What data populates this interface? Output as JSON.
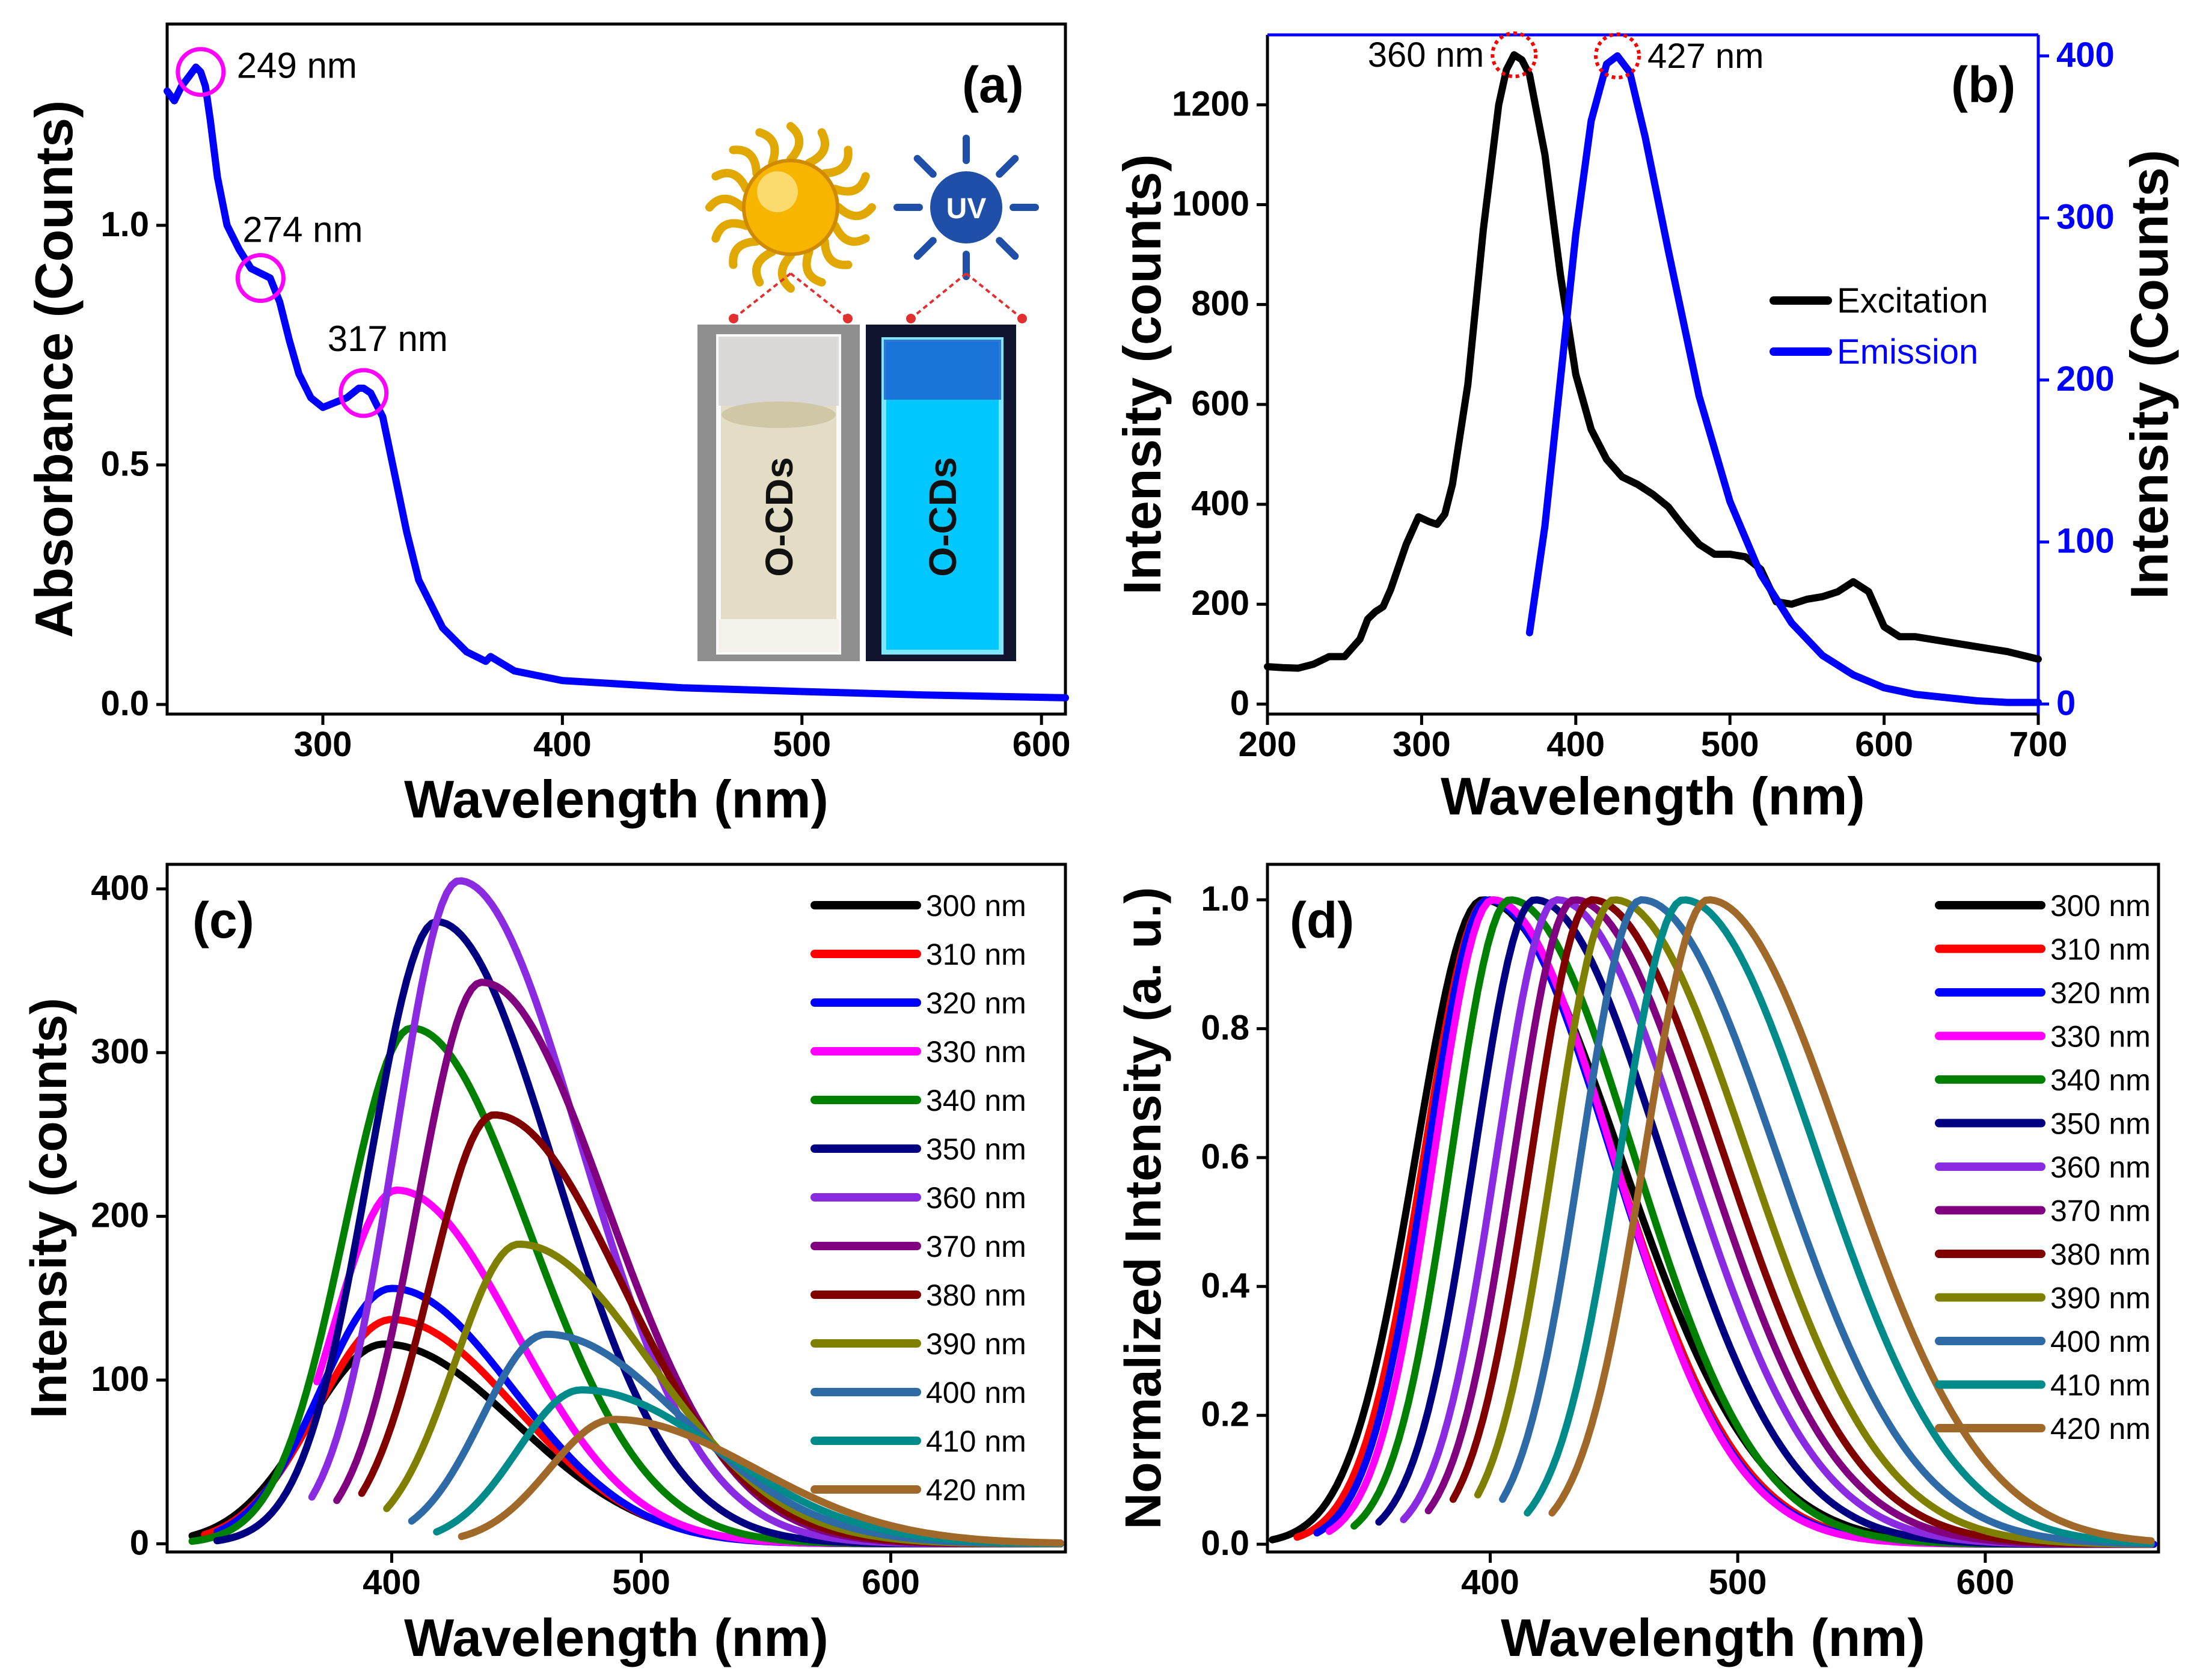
{
  "colors": {
    "black": "#000000",
    "red": "#ff0000",
    "blue": "#0000ff",
    "magenta": "#ff00ff",
    "green": "#008000",
    "navy": "#000080",
    "violet": "#8a2be2",
    "purple": "#800080",
    "maroon": "#800000",
    "olive": "#808000",
    "steelblue": "#2e6aa6",
    "teal": "#008b8b",
    "brown": "#a0692a",
    "highlight_circle": "#ff00ff",
    "dotted_circle": "#ff0000",
    "cuvette_uv": "#00c8ff",
    "cuvette_day": "#e8e2c8"
  },
  "chart_data": [
    {
      "id": "a",
      "panel_label": "(a)",
      "type": "line",
      "xlabel": "Wavelength (nm)",
      "ylabel": "Absorbance (Counts)",
      "xlim": [
        235,
        610
      ],
      "ylim": [
        -0.02,
        1.42
      ],
      "xticks": [
        300,
        400,
        500,
        600
      ],
      "yticks": [
        0.0,
        0.5,
        1.0
      ],
      "ytick_labels": [
        "0.0",
        "0.5",
        "1.0"
      ],
      "series": [
        {
          "name": "Absorbance",
          "color": "#0000ff",
          "x": [
            235,
            238,
            241,
            244,
            247,
            249,
            251,
            253,
            256,
            260,
            265,
            270,
            274,
            278,
            282,
            286,
            290,
            295,
            300,
            305,
            310,
            315,
            317,
            320,
            325,
            330,
            335,
            340,
            350,
            360,
            368,
            370,
            380,
            400,
            450,
            500,
            550,
            610
          ],
          "y": [
            1.28,
            1.26,
            1.29,
            1.31,
            1.33,
            1.32,
            1.29,
            1.22,
            1.1,
            1.0,
            0.95,
            0.91,
            0.9,
            0.89,
            0.84,
            0.76,
            0.69,
            0.64,
            0.62,
            0.63,
            0.64,
            0.66,
            0.66,
            0.65,
            0.6,
            0.48,
            0.36,
            0.26,
            0.16,
            0.11,
            0.09,
            0.1,
            0.07,
            0.05,
            0.035,
            0.027,
            0.02,
            0.014
          ]
        }
      ],
      "annotations": [
        {
          "label": "249 nm",
          "x": 249,
          "y": 1.32
        },
        {
          "label": "274 nm",
          "x": 274,
          "y": 0.89
        },
        {
          "label": "317 nm",
          "x": 317,
          "y": 0.65
        }
      ],
      "inset": {
        "sun_icon": "sun-icon",
        "uv_icon": "uv-lamp-icon",
        "uv_badge_text": "UV",
        "cuvette_label_daylight": "O-CDs",
        "cuvette_label_uv": "O-CDs"
      }
    },
    {
      "id": "b",
      "panel_label": "(b)",
      "type": "line",
      "xlabel": "Wavelength (nm)",
      "ylabel": "Intensity (counts)",
      "ylabel_right": "Intensity (Counts)",
      "xlim": [
        200,
        700
      ],
      "ylim": [
        -20,
        1340
      ],
      "ylim_right": [
        -6.2,
        413
      ],
      "xticks": [
        200,
        300,
        400,
        500,
        600,
        700
      ],
      "yticks": [
        0,
        200,
        400,
        600,
        800,
        1000,
        1200
      ],
      "yticks_right": [
        0,
        100,
        200,
        300,
        400
      ],
      "legend_position": "middle-right",
      "series": [
        {
          "name": "Excitation",
          "color": "#000000",
          "axis": "left",
          "x": [
            200,
            210,
            220,
            230,
            240,
            250,
            260,
            265,
            270,
            275,
            280,
            290,
            298,
            305,
            310,
            315,
            320,
            330,
            340,
            350,
            355,
            360,
            365,
            370,
            380,
            390,
            400,
            410,
            420,
            430,
            440,
            450,
            460,
            470,
            480,
            490,
            500,
            510,
            520,
            530,
            540,
            550,
            560,
            570,
            580,
            590,
            600,
            610,
            620,
            640,
            660,
            680,
            700
          ],
          "y": [
            75,
            73,
            72,
            80,
            95,
            95,
            130,
            170,
            185,
            195,
            230,
            320,
            375,
            365,
            360,
            380,
            440,
            640,
            950,
            1200,
            1270,
            1300,
            1290,
            1260,
            1100,
            860,
            660,
            550,
            490,
            455,
            440,
            420,
            395,
            355,
            320,
            300,
            300,
            295,
            270,
            205,
            200,
            210,
            215,
            225,
            245,
            225,
            155,
            135,
            135,
            125,
            115,
            105,
            90
          ]
        },
        {
          "name": "Emission",
          "color": "#0000ff",
          "axis": "right",
          "x": [
            370,
            380,
            390,
            400,
            410,
            420,
            427,
            435,
            445,
            460,
            480,
            500,
            520,
            540,
            560,
            580,
            600,
            620,
            640,
            660,
            680,
            700
          ],
          "y": [
            44,
            110,
            200,
            290,
            360,
            395,
            400,
            390,
            350,
            280,
            190,
            125,
            80,
            50,
            30,
            18,
            10,
            6,
            4,
            2,
            1,
            1
          ]
        }
      ],
      "annotations": [
        {
          "label": "360 nm",
          "x": 360,
          "y": 1300,
          "axis": "left"
        },
        {
          "label": "427 nm",
          "x": 427,
          "y": 400,
          "axis": "right"
        }
      ]
    },
    {
      "id": "c",
      "panel_label": "(c)",
      "type": "line",
      "xlabel": "Wavelength (nm)",
      "ylabel": "Intensity (counts)",
      "xlim": [
        310,
        670
      ],
      "ylim": [
        -5,
        415
      ],
      "xticks": [
        400,
        500,
        600
      ],
      "yticks": [
        0,
        100,
        200,
        300,
        400
      ],
      "legend_position": "top-right",
      "series": [
        {
          "name": "300 nm",
          "color": "#000000",
          "start": 320,
          "peak_x": 397,
          "peak": 122,
          "wl": 45,
          "wr": 78
        },
        {
          "name": "310 nm",
          "color": "#ff0000",
          "start": 325,
          "peak_x": 400,
          "peak": 137,
          "wl": 44,
          "wr": 74
        },
        {
          "name": "320 nm",
          "color": "#0000ff",
          "start": 330,
          "peak_x": 400,
          "peak": 156,
          "wl": 42,
          "wr": 72
        },
        {
          "name": "330 nm",
          "color": "#ff00ff",
          "start": 370,
          "peak_x": 402,
          "peak": 216,
          "wl": 38,
          "wr": 70
        },
        {
          "name": "340 nm",
          "color": "#008000",
          "start": 320,
          "peak_x": 408,
          "peak": 315,
          "wl": 40,
          "wr": 70
        },
        {
          "name": "350 nm",
          "color": "#000080",
          "start": 330,
          "peak_x": 418,
          "peak": 380,
          "wl": 40,
          "wr": 70
        },
        {
          "name": "360 nm",
          "color": "#8a2be2",
          "start": 368,
          "peak_x": 427,
          "peak": 405,
          "wl": 38,
          "wr": 72
        },
        {
          "name": "370 nm",
          "color": "#800080",
          "start": 378,
          "peak_x": 436,
          "peak": 343,
          "wl": 38,
          "wr": 74
        },
        {
          "name": "380 nm",
          "color": "#800000",
          "start": 388,
          "peak_x": 441,
          "peak": 262,
          "wl": 38,
          "wr": 76
        },
        {
          "name": "390 nm",
          "color": "#808000",
          "start": 398,
          "peak_x": 451,
          "peak": 183,
          "wl": 38,
          "wr": 78
        },
        {
          "name": "400 nm",
          "color": "#2e6aa6",
          "start": 408,
          "peak_x": 462,
          "peak": 128,
          "wl": 38,
          "wr": 80
        },
        {
          "name": "410 nm",
          "color": "#008b8b",
          "start": 418,
          "peak_x": 476,
          "peak": 94,
          "wl": 38,
          "wr": 82
        },
        {
          "name": "420 nm",
          "color": "#a0692a",
          "start": 428,
          "peak_x": 489,
          "peak": 76,
          "wl": 38,
          "wr": 84
        }
      ]
    },
    {
      "id": "d",
      "panel_label": "(d)",
      "type": "line",
      "xlabel": "Wavelength (nm)",
      "ylabel": "Normalized Intensity (a. u.)",
      "xlim": [
        310,
        670
      ],
      "ylim": [
        -0.012,
        1.055
      ],
      "xticks": [
        400,
        500,
        600
      ],
      "yticks": [
        0.0,
        0.2,
        0.4,
        0.6,
        0.8,
        1.0
      ],
      "ytick_labels": [
        "0.0",
        "0.2",
        "0.4",
        "0.6",
        "0.8",
        "1.0"
      ],
      "legend_position": "top-right",
      "series": [
        {
          "name": "300 nm",
          "color": "#000000",
          "start": 312,
          "peak_x": 397,
          "wl": 40,
          "wr": 82
        },
        {
          "name": "310 nm",
          "color": "#ff0000",
          "start": 322,
          "peak_x": 399,
          "wl": 38,
          "wr": 75
        },
        {
          "name": "320 nm",
          "color": "#0000ff",
          "start": 330,
          "peak_x": 399,
          "wl": 36,
          "wr": 74
        },
        {
          "name": "330 nm",
          "color": "#ff00ff",
          "start": 335,
          "peak_x": 401,
          "wl": 35,
          "wr": 72
        },
        {
          "name": "340 nm",
          "color": "#008000",
          "start": 345,
          "peak_x": 408,
          "wl": 35,
          "wr": 74
        },
        {
          "name": "350 nm",
          "color": "#000080",
          "start": 355,
          "peak_x": 418,
          "wl": 36,
          "wr": 76
        },
        {
          "name": "360 nm",
          "color": "#8a2be2",
          "start": 365,
          "peak_x": 427,
          "wl": 36,
          "wr": 77
        },
        {
          "name": "370 nm",
          "color": "#800080",
          "start": 375,
          "peak_x": 434,
          "wl": 36,
          "wr": 78
        },
        {
          "name": "380 nm",
          "color": "#800000",
          "start": 385,
          "peak_x": 441,
          "wl": 36,
          "wr": 79
        },
        {
          "name": "390 nm",
          "color": "#808000",
          "start": 395,
          "peak_x": 450,
          "wl": 36,
          "wr": 80
        },
        {
          "name": "400 nm",
          "color": "#2e6aa6",
          "start": 405,
          "peak_x": 461,
          "wl": 36,
          "wr": 81
        },
        {
          "name": "410 nm",
          "color": "#008b8b",
          "start": 415,
          "peak_x": 478,
          "wl": 38,
          "wr": 80
        },
        {
          "name": "420 nm",
          "color": "#a0692a",
          "start": 425,
          "peak_x": 488,
          "wl": 38,
          "wr": 82
        }
      ]
    }
  ]
}
